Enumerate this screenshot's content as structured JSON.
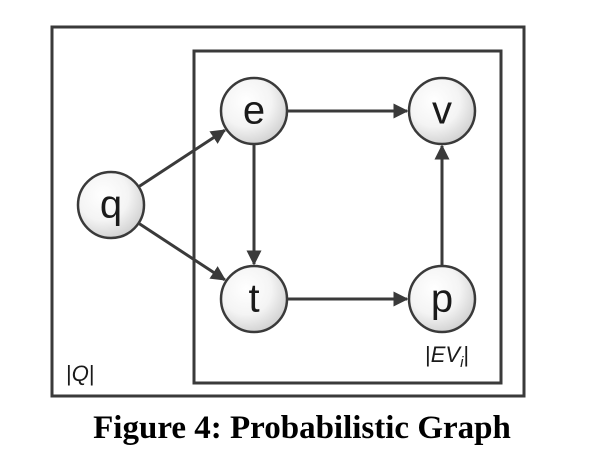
{
  "diagram": {
    "outer_plate": {
      "label_bar_left": "|",
      "label_var": "Q",
      "label_bar_right": "|"
    },
    "inner_plate": {
      "label_bar_left": "|",
      "label_var": "EV",
      "label_sub": "i",
      "label_bar_right": "|"
    },
    "nodes": [
      {
        "id": "q",
        "label": "q"
      },
      {
        "id": "e",
        "label": "e"
      },
      {
        "id": "v",
        "label": "v"
      },
      {
        "id": "t",
        "label": "t"
      },
      {
        "id": "p",
        "label": "p"
      }
    ],
    "edges": [
      {
        "from": "q",
        "to": "e"
      },
      {
        "from": "q",
        "to": "t"
      },
      {
        "from": "e",
        "to": "v"
      },
      {
        "from": "e",
        "to": "t"
      },
      {
        "from": "t",
        "to": "p"
      },
      {
        "from": "p",
        "to": "v"
      }
    ],
    "colors": {
      "stroke": "#3a3a3a",
      "node_fill_light": "#ffffff",
      "node_fill_dark": "#d0d0d0",
      "text": "#1a1a1a"
    }
  },
  "caption": "Figure 4: Probabilistic Graph"
}
